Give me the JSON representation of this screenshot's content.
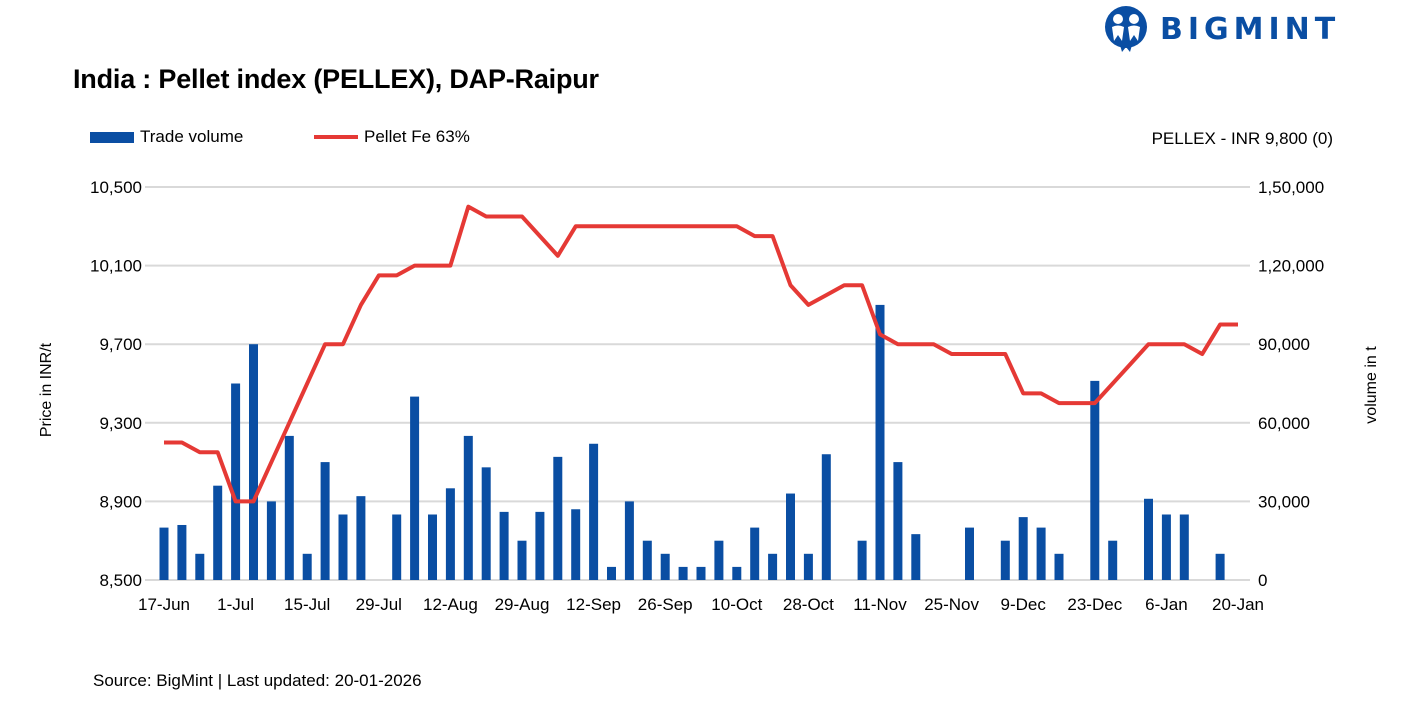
{
  "brand": {
    "logo_text": "BIGMINT",
    "color": "#0a4ea3"
  },
  "footer": {
    "source": "Source: BigMint | Last updated: 20-01-2026"
  },
  "chart_data": {
    "type": "bar+line",
    "title": "India : Pellet index (PELLEX), DAP-Raipur",
    "annotation": "PELLEX - INR 9,800 (0)",
    "ylabel_left": "Price in INR/t",
    "ylabel_right": "volume in t",
    "ylim_left": [
      8500,
      10500
    ],
    "yticks_left": [
      "10,500",
      "10,100",
      "9,700",
      "9,300",
      "8,900",
      "8,500"
    ],
    "ylim_right": [
      0,
      150000
    ],
    "yticks_right": [
      "1,50,000",
      "1,20,000",
      "90,000",
      "60,000",
      "30,000",
      "0"
    ],
    "grid": true,
    "legend_position": "top-left",
    "x_tick_labels": [
      "17-Jun",
      "1-Jul",
      "15-Jul",
      "29-Jul",
      "12-Aug",
      "29-Aug",
      "12-Sep",
      "26-Sep",
      "10-Oct",
      "28-Oct",
      "11-Nov",
      "25-Nov",
      "9-Dec",
      "23-Dec",
      "6-Jan",
      "20-Jan"
    ],
    "x_tick_every": 4,
    "series": [
      {
        "name": "Trade volume",
        "type": "bar",
        "axis": "right",
        "color": "#0a4ea3",
        "values": [
          20000,
          21000,
          10000,
          36000,
          75000,
          90000,
          30000,
          55000,
          10000,
          45000,
          25000,
          32000,
          0,
          25000,
          70000,
          25000,
          35000,
          55000,
          43000,
          26000,
          15000,
          26000,
          47000,
          27000,
          52000,
          5000,
          30000,
          15000,
          10000,
          5000,
          5000,
          15000,
          5000,
          20000,
          10000,
          33000,
          10000,
          48000,
          0,
          15000,
          105000,
          45000,
          17500,
          0,
          0,
          20000,
          0,
          15000,
          24000,
          20000,
          10000,
          0,
          76000,
          15000,
          0,
          31000,
          25000,
          25000,
          0,
          10000,
          0
        ]
      },
      {
        "name": "Pellet Fe 63%",
        "type": "line",
        "axis": "left",
        "color": "#e53935",
        "values": [
          9200,
          9200,
          9150,
          9150,
          8900,
          8900,
          9100,
          9300,
          9500,
          9700,
          9700,
          9900,
          10050,
          10050,
          10100,
          10100,
          10100,
          10400,
          10350,
          10350,
          10350,
          10250,
          10150,
          10300,
          10300,
          10300,
          10300,
          10300,
          10300,
          10300,
          10300,
          10300,
          10300,
          10250,
          10250,
          10000,
          9900,
          9950,
          10000,
          10000,
          9750,
          9700,
          9700,
          9700,
          9650,
          9650,
          9650,
          9650,
          9450,
          9450,
          9400,
          9400,
          9400,
          9500,
          9600,
          9700,
          9700,
          9700,
          9650,
          9800,
          9800
        ]
      }
    ]
  }
}
